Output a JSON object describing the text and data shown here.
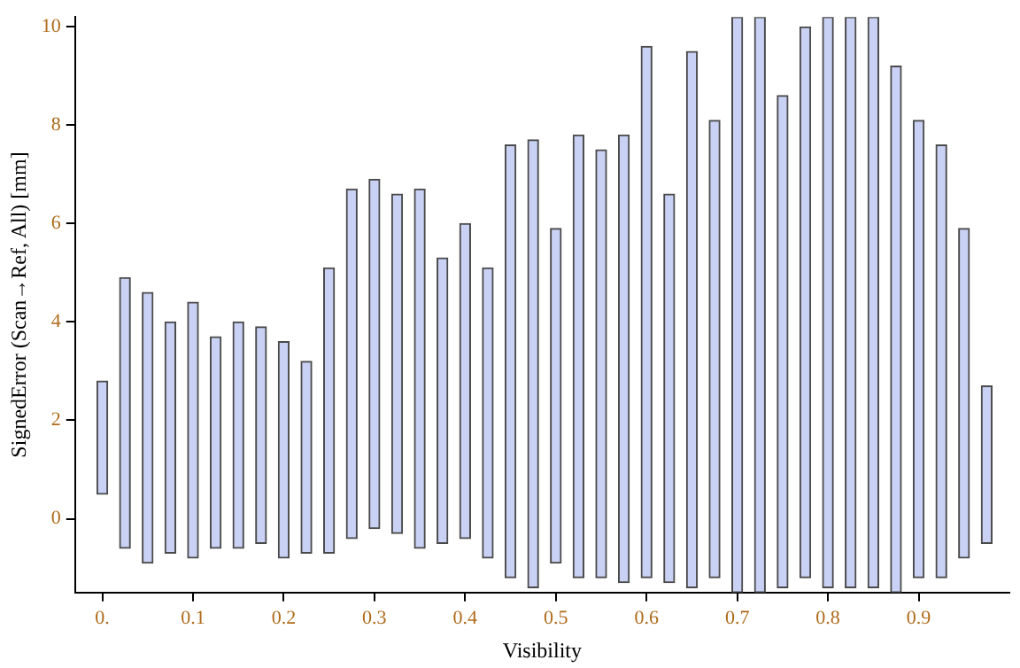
{
  "chart_data": {
    "type": "bar",
    "xlabel": "Visibility",
    "ylabel": "SignedError (Scan→Ref, All) [mm]",
    "x": [
      0,
      0.025,
      0.05,
      0.075,
      0.1,
      0.125,
      0.15,
      0.175,
      0.2,
      0.225,
      0.25,
      0.275,
      0.3,
      0.325,
      0.35,
      0.375,
      0.4,
      0.425,
      0.45,
      0.475,
      0.5,
      0.525,
      0.55,
      0.575,
      0.6,
      0.625,
      0.65,
      0.675,
      0.7,
      0.725,
      0.75,
      0.775,
      0.8,
      0.825,
      0.85,
      0.875,
      0.9,
      0.925,
      0.95,
      0.975
    ],
    "base": [
      0.5,
      -0.6,
      -0.9,
      -0.7,
      -0.8,
      -0.6,
      -0.6,
      -0.5,
      -0.8,
      -0.7,
      -0.7,
      -0.4,
      -0.2,
      -0.3,
      -0.6,
      -0.5,
      -0.4,
      -0.8,
      -1.2,
      -1.4,
      -0.9,
      -1.2,
      -1.2,
      -1.3,
      -1.2,
      -1.3,
      -1.4,
      -1.2,
      -1.5,
      -1.5,
      -1.4,
      -1.2,
      -1.4,
      -1.4,
      -1.4,
      -1.5,
      -1.2,
      -1.2,
      -0.8,
      -0.5
    ],
    "values": [
      2.3,
      5.5,
      5.5,
      4.7,
      5.2,
      4.3,
      4.6,
      4.4,
      4.4,
      3.9,
      5.8,
      7.1,
      7.1,
      6.9,
      7.3,
      5.8,
      6.4,
      5.9,
      8.8,
      9.1,
      6.8,
      9.0,
      8.7,
      9.1,
      10.8,
      7.9,
      10.9,
      9.3,
      11.7,
      11.7,
      10.0,
      11.2,
      11.6,
      11.6,
      11.6,
      10.7,
      9.3,
      8.8,
      6.7,
      3.2
    ],
    "color": "#c9d1f4",
    "xlim": [
      -0.03,
      1.0
    ],
    "xticks": [
      {
        "value": 0,
        "label": "0."
      },
      0.1,
      0.2,
      0.3,
      0.4,
      0.5,
      0.6,
      0.7,
      0.8,
      0.9
    ],
    "ylim": [
      -1.5,
      10.2
    ],
    "yticks": [
      0,
      2,
      4,
      6,
      8,
      10
    ],
    "grid": false,
    "legend": false
  }
}
